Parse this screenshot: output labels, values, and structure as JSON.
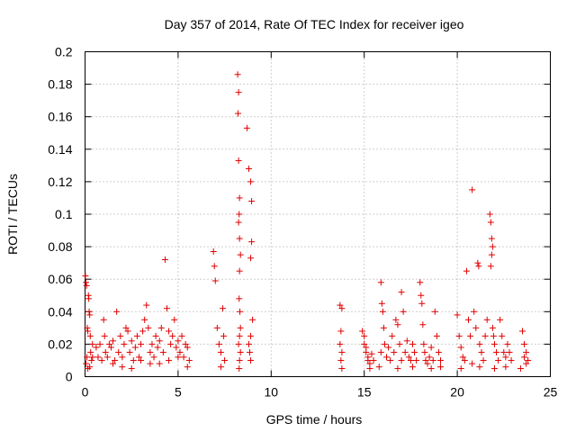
{
  "chart_data": {
    "type": "scatter",
    "title": "Day 357 of 2014, Rate Of TEC Index for receiver igeo",
    "xlabel": "GPS time / hours",
    "ylabel": "ROTI / TECUs",
    "xlim": [
      0,
      25
    ],
    "ylim": [
      0,
      0.2
    ],
    "xticks": [
      0,
      5,
      10,
      15,
      20,
      25
    ],
    "xtick_labels": [
      "0",
      "5",
      "10",
      "15",
      "20",
      "25"
    ],
    "yticks": [
      0,
      0.02,
      0.04,
      0.06,
      0.08,
      0.1,
      0.12,
      0.14,
      0.16,
      0.18,
      0.2
    ],
    "ytick_labels": [
      "0",
      "0.02",
      "0.04",
      "0.06",
      "0.08",
      "0.1",
      "0.12",
      "0.14",
      "0.16",
      "0.18",
      "0.2"
    ],
    "grid": true,
    "marker": "+",
    "color": "#e00000",
    "series": [
      {
        "name": "ROTI",
        "points": [
          [
            0.02,
            0.062
          ],
          [
            0.05,
            0.058
          ],
          [
            0.08,
            0.056
          ],
          [
            0.12,
            0.03
          ],
          [
            0.15,
            0.028
          ],
          [
            0.1,
            0.012
          ],
          [
            0.05,
            0.008
          ],
          [
            0.18,
            0.05
          ],
          [
            0.2,
            0.048
          ],
          [
            0.22,
            0.04
          ],
          [
            0.25,
            0.038
          ],
          [
            0.28,
            0.025
          ],
          [
            0.3,
            0.015
          ],
          [
            0.35,
            0.01
          ],
          [
            0.4,
            0.02
          ],
          [
            0.15,
            0.005
          ],
          [
            0.25,
            0.006
          ],
          [
            0.4,
            0.012
          ],
          [
            0.6,
            0.018
          ],
          [
            0.7,
            0.012
          ],
          [
            0.8,
            0.02
          ],
          [
            0.9,
            0.01
          ],
          [
            1.0,
            0.035
          ],
          [
            1.05,
            0.025
          ],
          [
            1.1,
            0.015
          ],
          [
            1.2,
            0.012
          ],
          [
            1.3,
            0.02
          ],
          [
            1.4,
            0.018
          ],
          [
            1.5,
            0.022
          ],
          [
            1.6,
            0.01
          ],
          [
            1.7,
            0.04
          ],
          [
            1.8,
            0.015
          ],
          [
            1.9,
            0.025
          ],
          [
            2.0,
            0.012
          ],
          [
            2.1,
            0.02
          ],
          [
            2.2,
            0.03
          ],
          [
            2.3,
            0.028
          ],
          [
            2.4,
            0.015
          ],
          [
            2.5,
            0.022
          ],
          [
            2.6,
            0.01
          ],
          [
            2.7,
            0.018
          ],
          [
            2.8,
            0.025
          ],
          [
            2.9,
            0.012
          ],
          [
            3.0,
            0.02
          ],
          [
            3.1,
            0.028
          ],
          [
            3.2,
            0.035
          ],
          [
            3.3,
            0.044
          ],
          [
            3.4,
            0.03
          ],
          [
            3.5,
            0.015
          ],
          [
            3.6,
            0.02
          ],
          [
            3.7,
            0.012
          ],
          [
            3.8,
            0.025
          ],
          [
            3.9,
            0.018
          ],
          [
            4.0,
            0.022
          ],
          [
            4.1,
            0.03
          ],
          [
            4.2,
            0.015
          ],
          [
            4.3,
            0.072
          ],
          [
            4.4,
            0.042
          ],
          [
            4.5,
            0.028
          ],
          [
            4.6,
            0.02
          ],
          [
            4.7,
            0.025
          ],
          [
            4.8,
            0.035
          ],
          [
            4.9,
            0.018
          ],
          [
            5.0,
            0.022
          ],
          [
            5.1,
            0.015
          ],
          [
            5.2,
            0.025
          ],
          [
            5.3,
            0.012
          ],
          [
            5.4,
            0.02
          ],
          [
            5.5,
            0.018
          ],
          [
            5.6,
            0.01
          ],
          [
            2.5,
            0.005
          ],
          [
            3.5,
            0.008
          ],
          [
            4.5,
            0.01
          ],
          [
            5.0,
            0.012
          ],
          [
            1.5,
            0.008
          ],
          [
            2.0,
            0.006
          ],
          [
            3.0,
            0.01
          ],
          [
            4.0,
            0.008
          ],
          [
            5.5,
            0.006
          ],
          [
            6.9,
            0.077
          ],
          [
            6.95,
            0.068
          ],
          [
            7.0,
            0.059
          ],
          [
            7.1,
            0.03
          ],
          [
            7.2,
            0.02
          ],
          [
            7.3,
            0.015
          ],
          [
            7.4,
            0.042
          ],
          [
            7.45,
            0.025
          ],
          [
            7.5,
            0.01
          ],
          [
            7.3,
            0.006
          ],
          [
            8.2,
            0.186
          ],
          [
            8.25,
            0.175
          ],
          [
            8.22,
            0.162
          ],
          [
            8.25,
            0.133
          ],
          [
            8.3,
            0.11
          ],
          [
            8.28,
            0.1
          ],
          [
            8.25,
            0.095
          ],
          [
            8.3,
            0.085
          ],
          [
            8.35,
            0.075
          ],
          [
            8.3,
            0.065
          ],
          [
            8.28,
            0.048
          ],
          [
            8.32,
            0.04
          ],
          [
            8.35,
            0.03
          ],
          [
            8.3,
            0.025
          ],
          [
            8.25,
            0.02
          ],
          [
            8.35,
            0.015
          ],
          [
            8.3,
            0.01
          ],
          [
            8.28,
            0.005
          ],
          [
            8.7,
            0.153
          ],
          [
            8.8,
            0.128
          ],
          [
            8.9,
            0.12
          ],
          [
            8.95,
            0.108
          ],
          [
            8.95,
            0.083
          ],
          [
            8.9,
            0.073
          ],
          [
            9.0,
            0.035
          ],
          [
            8.9,
            0.025
          ],
          [
            8.8,
            0.02
          ],
          [
            8.85,
            0.015
          ],
          [
            8.9,
            0.01
          ],
          [
            13.7,
            0.044
          ],
          [
            13.8,
            0.042
          ],
          [
            13.75,
            0.028
          ],
          [
            13.7,
            0.02
          ],
          [
            13.8,
            0.015
          ],
          [
            13.75,
            0.01
          ],
          [
            13.8,
            0.005
          ],
          [
            14.9,
            0.028
          ],
          [
            15.0,
            0.02
          ],
          [
            15.1,
            0.015
          ],
          [
            15.2,
            0.01
          ],
          [
            15.3,
            0.005
          ],
          [
            15.0,
            0.025
          ],
          [
            15.1,
            0.018
          ],
          [
            15.2,
            0.012
          ],
          [
            15.3,
            0.008
          ],
          [
            15.4,
            0.014
          ],
          [
            15.5,
            0.01
          ],
          [
            15.9,
            0.058
          ],
          [
            15.95,
            0.045
          ],
          [
            16.0,
            0.04
          ],
          [
            16.05,
            0.03
          ],
          [
            16.1,
            0.02
          ],
          [
            15.9,
            0.015
          ],
          [
            16.2,
            0.012
          ],
          [
            16.3,
            0.018
          ],
          [
            16.4,
            0.01
          ],
          [
            16.5,
            0.025
          ],
          [
            16.6,
            0.015
          ],
          [
            16.7,
            0.035
          ],
          [
            16.8,
            0.032
          ],
          [
            16.9,
            0.02
          ],
          [
            17.0,
            0.052
          ],
          [
            17.1,
            0.04
          ],
          [
            17.0,
            0.01
          ],
          [
            17.2,
            0.015
          ],
          [
            17.3,
            0.022
          ],
          [
            17.4,
            0.012
          ],
          [
            17.5,
            0.01
          ],
          [
            17.6,
            0.02
          ],
          [
            17.7,
            0.015
          ],
          [
            17.8,
            0.01
          ],
          [
            18.0,
            0.058
          ],
          [
            18.05,
            0.05
          ],
          [
            18.1,
            0.045
          ],
          [
            18.15,
            0.032
          ],
          [
            18.2,
            0.02
          ],
          [
            18.25,
            0.015
          ],
          [
            18.3,
            0.01
          ],
          [
            18.4,
            0.008
          ],
          [
            18.5,
            0.012
          ],
          [
            18.6,
            0.018
          ],
          [
            18.7,
            0.01
          ],
          [
            18.8,
            0.04
          ],
          [
            18.9,
            0.025
          ],
          [
            19.0,
            0.015
          ],
          [
            19.1,
            0.01
          ],
          [
            20.0,
            0.038
          ],
          [
            20.1,
            0.025
          ],
          [
            20.2,
            0.018
          ],
          [
            20.3,
            0.012
          ],
          [
            20.4,
            0.01
          ],
          [
            20.5,
            0.065
          ],
          [
            20.6,
            0.035
          ],
          [
            20.7,
            0.025
          ],
          [
            20.8,
            0.115
          ],
          [
            20.9,
            0.04
          ],
          [
            21.0,
            0.03
          ],
          [
            21.1,
            0.07
          ],
          [
            21.15,
            0.068
          ],
          [
            21.2,
            0.02
          ],
          [
            21.3,
            0.015
          ],
          [
            21.4,
            0.01
          ],
          [
            21.5,
            0.025
          ],
          [
            21.6,
            0.035
          ],
          [
            21.75,
            0.1
          ],
          [
            21.8,
            0.095
          ],
          [
            21.85,
            0.085
          ],
          [
            21.9,
            0.08
          ],
          [
            21.85,
            0.075
          ],
          [
            21.8,
            0.068
          ],
          [
            21.9,
            0.03
          ],
          [
            21.95,
            0.025
          ],
          [
            22.0,
            0.02
          ],
          [
            22.1,
            0.015
          ],
          [
            22.2,
            0.01
          ],
          [
            22.3,
            0.035
          ],
          [
            22.4,
            0.025
          ],
          [
            22.5,
            0.015
          ],
          [
            22.6,
            0.012
          ],
          [
            22.7,
            0.02
          ],
          [
            22.8,
            0.015
          ],
          [
            22.9,
            0.01
          ],
          [
            23.5,
            0.028
          ],
          [
            23.6,
            0.02
          ],
          [
            23.7,
            0.015
          ],
          [
            23.8,
            0.01
          ],
          [
            23.6,
            0.012
          ],
          [
            23.7,
            0.008
          ],
          [
            20.2,
            0.005
          ],
          [
            20.8,
            0.008
          ],
          [
            21.2,
            0.006
          ],
          [
            22.0,
            0.005
          ],
          [
            22.6,
            0.006
          ],
          [
            23.4,
            0.005
          ],
          [
            15.8,
            0.006
          ],
          [
            16.8,
            0.005
          ],
          [
            17.6,
            0.006
          ],
          [
            18.6,
            0.005
          ],
          [
            19.1,
            0.006
          ]
        ]
      }
    ]
  }
}
